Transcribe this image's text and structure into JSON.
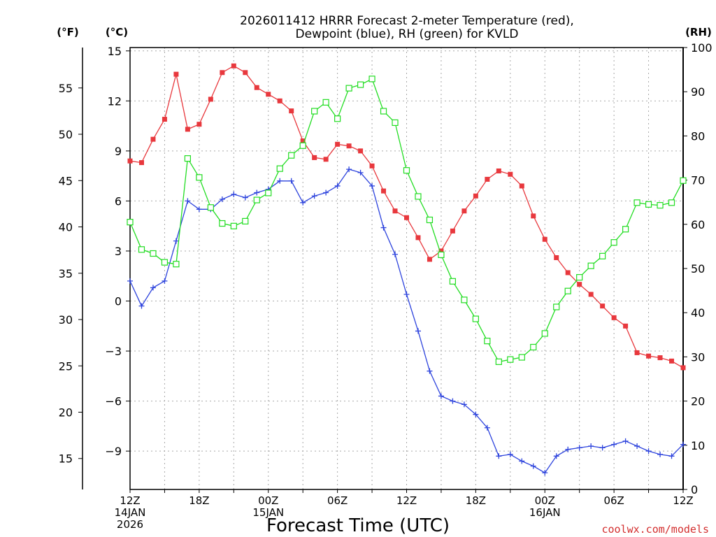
{
  "chart_data": {
    "type": "line",
    "title_line1": "2026011412 HRRR Forecast 2-meter Temperature (red),",
    "title_line2": "Dewpoint (blue), RH (green) for KVLD",
    "xlabel": "Forecast Time (UTC)",
    "credit": "coolwx.com/models",
    "units": {
      "f": "(°F)",
      "c": "(°C)",
      "rh": "(RH)"
    },
    "x_hours": {
      "min": 0,
      "max": 48
    },
    "x_ticks": [
      {
        "h": 0,
        "lines": [
          "12Z",
          "14JAN",
          "2026"
        ]
      },
      {
        "h": 6,
        "lines": [
          "18Z"
        ]
      },
      {
        "h": 12,
        "lines": [
          "00Z",
          "15JAN"
        ]
      },
      {
        "h": 18,
        "lines": [
          "06Z"
        ]
      },
      {
        "h": 24,
        "lines": [
          "12Z"
        ]
      },
      {
        "h": 30,
        "lines": [
          "18Z"
        ]
      },
      {
        "h": 36,
        "lines": [
          "00Z",
          "16JAN"
        ]
      },
      {
        "h": 42,
        "lines": [
          "06Z"
        ]
      },
      {
        "h": 48,
        "lines": [
          "12Z"
        ]
      }
    ],
    "y_celsius": {
      "min": -11.3,
      "max": 15.2,
      "ticks": [
        -9,
        -6,
        -3,
        0,
        3,
        6,
        9,
        12,
        15
      ],
      "tick_labels": [
        "−9",
        "−6",
        "−3",
        "0",
        "3",
        "6",
        "9",
        "12",
        "15"
      ]
    },
    "y_fahrenheit": {
      "ticks": [
        15,
        20,
        25,
        30,
        35,
        40,
        45,
        50,
        55
      ],
      "tick_labels": [
        "15",
        "20",
        "25",
        "30",
        "35",
        "40",
        "45",
        "50",
        "55"
      ]
    },
    "y_rh": {
      "min": 0,
      "max": 100,
      "ticks": [
        0,
        10,
        20,
        30,
        40,
        50,
        60,
        70,
        80,
        90,
        100
      ],
      "tick_labels": [
        "0",
        "10",
        "20",
        "30",
        "40",
        "50",
        "60",
        "70",
        "80",
        "90",
        "100"
      ]
    },
    "series": [
      {
        "name": "Temperature",
        "unit": "C",
        "color": "#e8383d",
        "marker": "filled-square",
        "values": [
          8.4,
          8.3,
          9.7,
          10.9,
          13.6,
          10.3,
          10.6,
          12.1,
          13.7,
          14.1,
          13.7,
          12.8,
          12.4,
          12.0,
          11.4,
          9.6,
          8.6,
          8.5,
          9.4,
          9.3,
          9.0,
          8.1,
          6.6,
          5.4,
          5.0,
          3.8,
          2.5,
          3.0,
          4.2,
          5.4,
          6.3,
          7.3,
          7.8,
          7.6,
          6.9,
          5.1,
          3.7,
          2.6,
          1.7,
          1.0,
          0.4,
          -0.3,
          -1.0,
          -1.5,
          -3.1,
          -3.3,
          -3.4,
          -3.6,
          -4.0
        ]
      },
      {
        "name": "Dewpoint",
        "unit": "C",
        "color": "#2e44dd",
        "marker": "plus",
        "values": [
          1.2,
          -0.3,
          0.8,
          1.2,
          3.6,
          6.0,
          5.5,
          5.5,
          6.1,
          6.4,
          6.2,
          6.5,
          6.7,
          7.2,
          7.2,
          5.9,
          6.3,
          6.5,
          6.9,
          7.9,
          7.7,
          6.9,
          4.4,
          2.8,
          0.4,
          -1.8,
          -4.2,
          -5.7,
          -6.0,
          -6.2,
          -6.8,
          -7.6,
          -9.3,
          -9.2,
          -9.6,
          -9.9,
          -10.3,
          -9.3,
          -8.9,
          -8.8,
          -8.7,
          -8.8,
          -8.6,
          -8.4,
          -8.7,
          -9.0,
          -9.2,
          -9.3,
          -8.6
        ]
      },
      {
        "name": "RH",
        "unit": "%",
        "color": "#22dd22",
        "marker": "open-square",
        "values": [
          60.5,
          54.3,
          53.4,
          51.4,
          51.0,
          74.9,
          70.6,
          63.8,
          60.2,
          59.6,
          60.7,
          65.5,
          67.1,
          72.6,
          75.6,
          77.8,
          85.6,
          87.6,
          83.9,
          90.8,
          91.6,
          92.9,
          85.6,
          83.0,
          72.2,
          66.3,
          61.0,
          53.1,
          47.1,
          42.9,
          38.6,
          33.6,
          28.9,
          29.4,
          29.9,
          32.2,
          35.3,
          41.3,
          44.9,
          48.0,
          50.6,
          52.8,
          55.9,
          58.9,
          64.9,
          64.5,
          64.3,
          64.9,
          69.9
        ]
      }
    ]
  }
}
